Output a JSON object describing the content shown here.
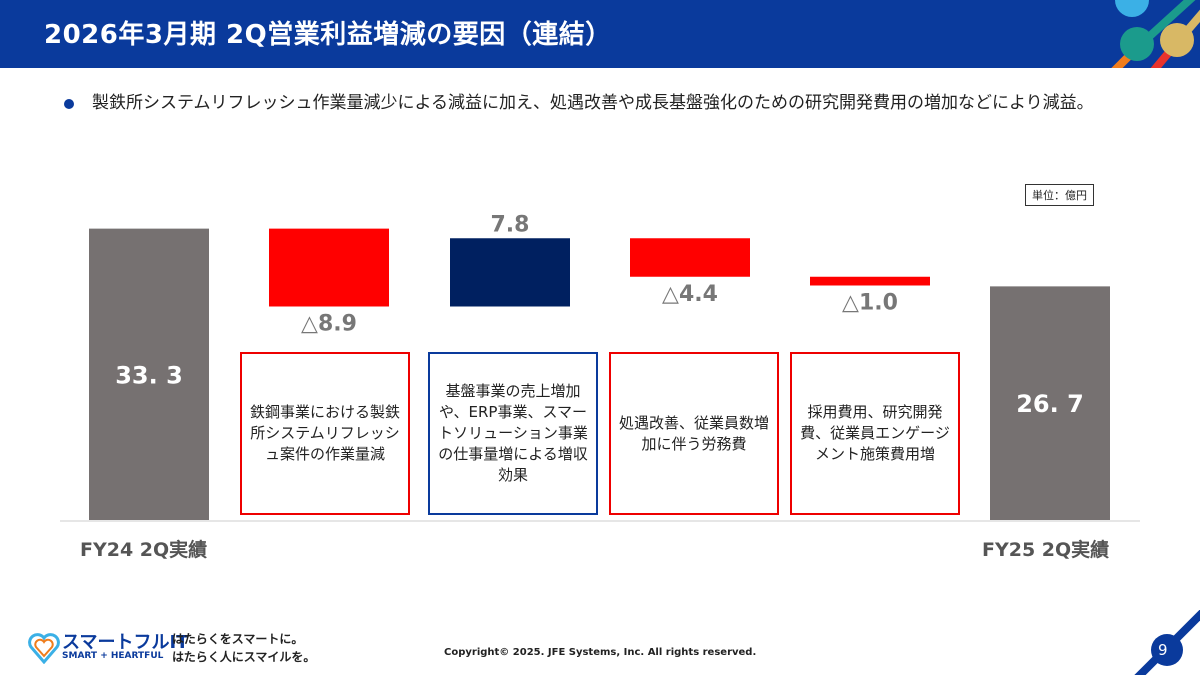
{
  "header": {
    "title": "2026年3月期 2Q営業利益増減の要因（連結）"
  },
  "bullet": "製鉄所システムリフレッシュ作業量減少による減益に加え、処遇改善や成長基盤強化のための研究開発費用の増加などにより減益。",
  "unit": "単位：億円",
  "chart_data": {
    "type": "waterfall",
    "ylabel": "",
    "categories": [
      "FY24 2Q実績",
      "",
      "",
      "",
      "",
      "FY25 2Q実績"
    ],
    "values": [
      33.3,
      -8.9,
      7.8,
      -4.4,
      -1.0,
      26.7
    ],
    "labels": [
      "33. 3",
      "△8.9",
      "7.8",
      "△4.4",
      "△1.0",
      "26. 7"
    ],
    "kinds": [
      "total",
      "decrease",
      "increase",
      "decrease",
      "decrease",
      "total"
    ],
    "colors": {
      "total": "#767171",
      "decrease": "#ff0000",
      "increase": "#002060"
    },
    "descriptions": [
      "鉄鋼事業における製鉄所システムリフレッシュ案件の作業量減",
      "基盤事業の売上増加や、ERP事業、スマートソリューション事業の仕事量増による増収効果",
      "処遇改善、従業員数増加に伴う労務費",
      "採用費用、研究開発費、従業員エンゲージメント施策費用増"
    ]
  },
  "footer": {
    "brand": "スマートフルIT",
    "brand_sub": "SMART + HEARTFUL",
    "slogan1": "はたらくをスマートに。",
    "slogan2": "はたらく人にスマイルを。",
    "copyright": "Copyright© 2025. JFE Systems, Inc. All rights reserved.",
    "page": "9"
  }
}
